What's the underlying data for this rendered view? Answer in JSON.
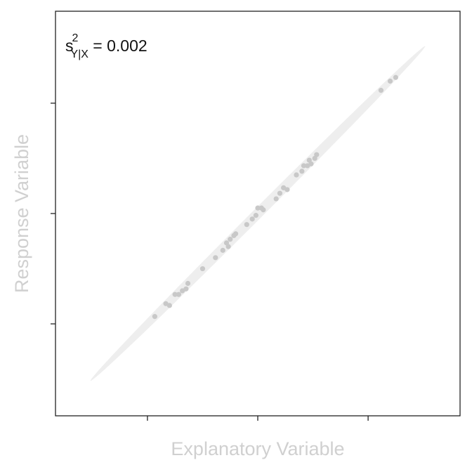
{
  "chart_data": {
    "type": "scatter",
    "xlabel": "Explanatory Variable",
    "ylabel": "Response Variable",
    "xlim": [
      -1.1,
      1.1
    ],
    "ylim": [
      -1.1,
      1.1
    ],
    "x_ticks": [
      -0.6,
      0.0,
      0.6
    ],
    "y_ticks": [
      -0.6,
      0.0,
      0.6
    ],
    "tick_labels_shown": false,
    "grid": false,
    "annotation": {
      "base": "s",
      "superscript": "2",
      "subscript": "Y|X",
      "value_text": " = 0.002"
    },
    "band": {
      "description": "confidence ellipse",
      "start": [
        -0.91,
        -0.91
      ],
      "end": [
        0.91,
        0.91
      ],
      "half_width": 0.05
    },
    "points": {
      "x": [
        -0.56,
        -0.5,
        -0.48,
        -0.45,
        -0.43,
        -0.41,
        -0.39,
        -0.38,
        -0.3,
        -0.23,
        -0.19,
        -0.17,
        -0.16,
        -0.15,
        -0.13,
        -0.12,
        -0.06,
        -0.03,
        -0.01,
        0.0,
        0.02,
        0.03,
        0.1,
        0.12,
        0.14,
        0.16,
        0.21,
        0.24,
        0.25,
        0.27,
        0.28,
        0.29,
        0.31,
        0.32,
        0.67,
        0.72,
        0.75
      ],
      "y": [
        -0.56,
        -0.49,
        -0.5,
        -0.44,
        -0.44,
        -0.42,
        -0.41,
        -0.38,
        -0.3,
        -0.24,
        -0.2,
        -0.16,
        -0.18,
        -0.14,
        -0.12,
        -0.11,
        -0.06,
        -0.03,
        -0.01,
        0.03,
        0.03,
        0.02,
        0.08,
        0.11,
        0.14,
        0.13,
        0.21,
        0.23,
        0.26,
        0.26,
        0.29,
        0.27,
        0.3,
        0.32,
        0.67,
        0.72,
        0.74
      ]
    },
    "colors": {
      "points": "#c8c8c8",
      "band": "#eeeeee",
      "axis": "#222222",
      "axis_title": "#d0d0d0",
      "annotation": "#111111"
    }
  }
}
